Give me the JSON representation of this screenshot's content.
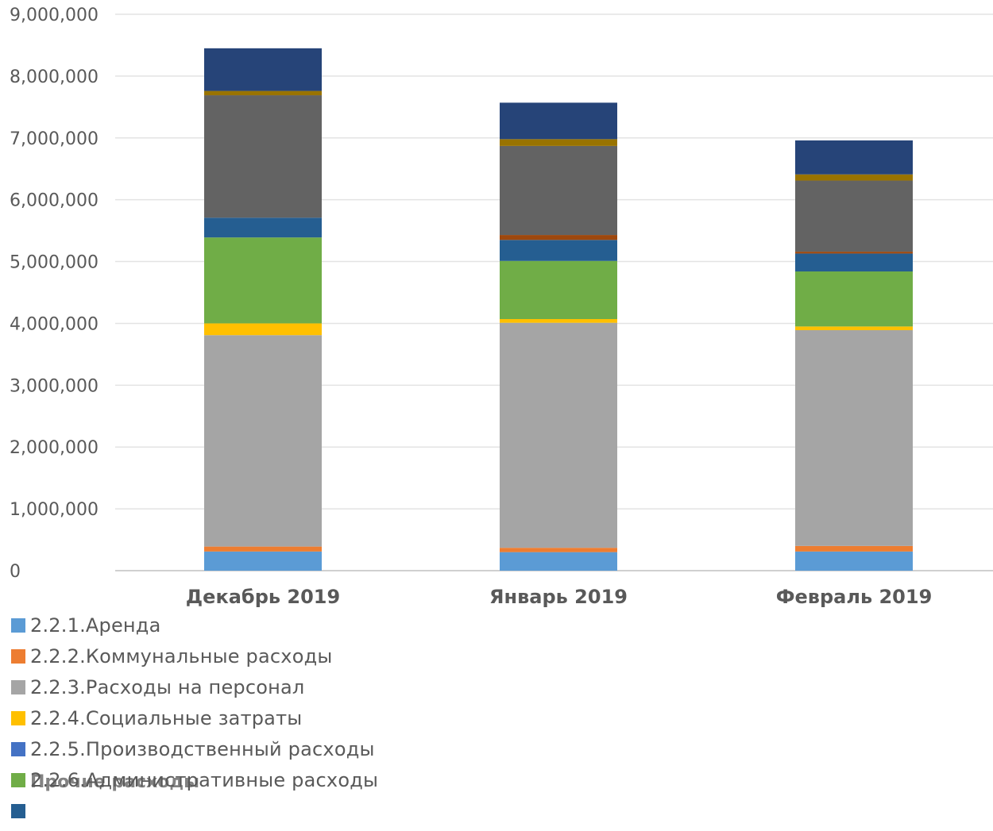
{
  "chart_data": {
    "type": "bar",
    "stacked": true,
    "categories": [
      "Декабрь 2019",
      "Январь 2019",
      "Февраль 2019"
    ],
    "ylim": [
      0,
      9000000
    ],
    "yticks": [
      0,
      1000000,
      2000000,
      3000000,
      4000000,
      5000000,
      6000000,
      7000000,
      8000000,
      9000000
    ],
    "ytick_labels": [
      "0",
      "1,000,000",
      "2,000,000",
      "3,000,000",
      "4,000,000",
      "5,000,000",
      "6,000,000",
      "7,000,000",
      "8,000,000",
      "9,000,000"
    ],
    "grid": true,
    "legend_position": "bottom-left",
    "series": [
      {
        "name": "2.2.1.Аренда",
        "color": "#5b9bd5",
        "values": [
          310000,
          300000,
          310000
        ]
      },
      {
        "name": "2.2.2.Коммунальные расходы",
        "color": "#ed7d31",
        "values": [
          80000,
          70000,
          90000
        ]
      },
      {
        "name": "2.2.3.Расходы на персонал",
        "color": "#a5a5a5",
        "values": [
          3420000,
          3640000,
          3490000
        ]
      },
      {
        "name": "2.2.4.Социальные затраты",
        "color": "#ffc000",
        "values": [
          190000,
          60000,
          60000
        ]
      },
      {
        "name": "",
        "color": "#70ad47",
        "values": [
          1390000,
          940000,
          890000
        ]
      },
      {
        "name": "",
        "color": "#255e91",
        "values": [
          320000,
          340000,
          290000
        ]
      },
      {
        "name": "",
        "color": "#9e480e",
        "values": [
          0,
          80000,
          30000
        ]
      },
      {
        "name": "",
        "color": "#636363",
        "values": [
          1980000,
          1440000,
          1150000
        ]
      },
      {
        "name": "",
        "color": "#997300",
        "values": [
          70000,
          110000,
          100000
        ]
      },
      {
        "name": "",
        "color": "#264478",
        "values": [
          690000,
          590000,
          550000
        ]
      }
    ]
  },
  "legend": {
    "items": [
      {
        "label": "2.2.1.Аренда",
        "color": "#5b9bd5"
      },
      {
        "label": "2.2.2.Коммунальные расходы",
        "color": "#ed7d31"
      },
      {
        "label": "2.2.3.Расходы на персонал",
        "color": "#a5a5a5"
      },
      {
        "label": "2.2.4.Социальные затраты",
        "color": "#ffc000"
      },
      {
        "label": "2.2.5.Производственный расходы",
        "color": "#4472c4"
      },
      {
        "label": "2.2.6.Административные расходы",
        "color": "#70ad47"
      },
      {
        "label": "",
        "color": "#255e91"
      },
      {
        "label": "",
        "color": "#ffc000"
      }
    ],
    "overlap_text": "Прочие расходы"
  }
}
